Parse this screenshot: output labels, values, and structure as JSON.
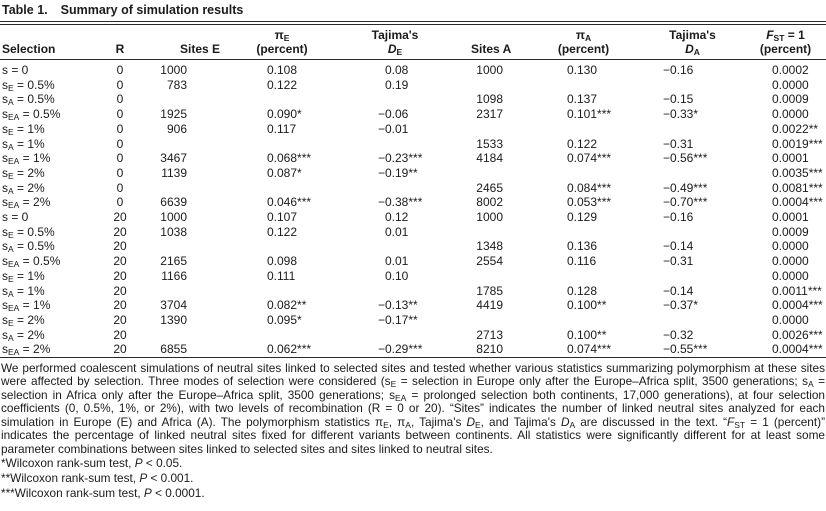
{
  "title": {
    "label": "Table 1.",
    "text": "Summary of simulation results"
  },
  "table": {
    "columns": [
      {
        "key": "selection",
        "label": "Selection"
      },
      {
        "key": "r",
        "label": "R"
      },
      {
        "key": "sites_e",
        "label": "Sites E"
      },
      {
        "key": "pi_e",
        "label": "π~E~\n(percent)"
      },
      {
        "key": "tajima_d_e",
        "label": "Tajima's\n{D}~E~"
      },
      {
        "key": "sites_a",
        "label": "Sites A"
      },
      {
        "key": "pi_a",
        "label": "π~A~\n(percent)"
      },
      {
        "key": "tajima_d_a",
        "label": "Tajima's\n{D}~A~"
      },
      {
        "key": "fst",
        "label": "{F}~ST~ = 1\n(percent)"
      }
    ],
    "rows": [
      [
        "s = 0",
        "0",
        "1000",
        "0.108",
        "0.08",
        "1000",
        "0.130",
        "−0.16",
        "0.0002"
      ],
      [
        "s~E~ = 0.5%",
        "0",
        "783",
        "0.122",
        "0.19",
        "",
        "",
        "",
        "0.0000"
      ],
      [
        "s~A~ = 0.5%",
        "0",
        "",
        "",
        "",
        "1098",
        "0.137",
        "−0.15",
        "0.0009"
      ],
      [
        "s~EA~ = 0.5%",
        "0",
        "1925",
        "0.090*",
        "−0.06",
        "2317",
        "0.101***",
        "−0.33*",
        "0.0000"
      ],
      [
        "s~E~ = 1%",
        "0",
        "906",
        "0.117",
        "−0.01",
        "",
        "",
        "",
        "0.0022**"
      ],
      [
        "s~A~ = 1%",
        "0",
        "",
        "",
        "",
        "1533",
        "0.122",
        "−0.31",
        "0.0019***"
      ],
      [
        "s~EA~ = 1%",
        "0",
        "3467",
        "0.068***",
        "−0.23***",
        "4184",
        "0.074***",
        "−0.56***",
        "0.0001"
      ],
      [
        "s~E~ = 2%",
        "0",
        "1139",
        "0.087*",
        "−0.19**",
        "",
        "",
        "",
        "0.0035***"
      ],
      [
        "s~A~ = 2%",
        "0",
        "",
        "",
        "",
        "2465",
        "0.084***",
        "−0.49***",
        "0.0081***"
      ],
      [
        "s~EA~ = 2%",
        "0",
        "6639",
        "0.046***",
        "−0.38***",
        "8002",
        "0.053***",
        "−0.70***",
        "0.0004***"
      ],
      [
        "s = 0",
        "20",
        "1000",
        "0.107",
        "0.12",
        "1000",
        "0.129",
        "−0.16",
        "0.0001"
      ],
      [
        "s~E~ = 0.5%",
        "20",
        "1038",
        "0.122",
        "0.01",
        "",
        "",
        "",
        "0.0009"
      ],
      [
        "s~A~ = 0.5%",
        "20",
        "",
        "",
        "",
        "1348",
        "0.136",
        "−0.14",
        "0.0000"
      ],
      [
        "s~EA~ = 0.5%",
        "20",
        "2165",
        "0.098",
        "0.01",
        "2554",
        "0.116",
        "−0.31",
        "0.0000"
      ],
      [
        "s~E~ = 1%",
        "20",
        "1166",
        "0.111",
        "0.10",
        "",
        "",
        "",
        "0.0000"
      ],
      [
        "s~A~ = 1%",
        "20",
        "",
        "",
        "",
        "1785",
        "0.128",
        "−0.14",
        "0.0011***"
      ],
      [
        "s~EA~ = 1%",
        "20",
        "3704",
        "0.082**",
        "−0.13**",
        "4419",
        "0.100**",
        "−0.37*",
        "0.0004***"
      ],
      [
        "s~E~ = 2%",
        "20",
        "1390",
        "0.095*",
        "−0.17**",
        "",
        "",
        "",
        "0.0000"
      ],
      [
        "s~A~ = 2%",
        "20",
        "",
        "",
        "",
        "2713",
        "0.100**",
        "−0.32",
        "0.0026***"
      ],
      [
        "s~EA~ = 2%",
        "20",
        "6855",
        "0.062***",
        "−0.29***",
        "8210",
        "0.074***",
        "−0.55***",
        "0.0004***"
      ]
    ]
  },
  "notes": {
    "body": "We performed coalescent simulations of neutral sites linked to selected sites and tested whether various statistics summarizing polymorphism at these sites were affected by selection. Three modes of selection were considered (s~E~ = selection in Europe only after the Europe–Africa split, 3500 generations; s~A~ = selection in Africa only after the Europe–Africa split, 3500 generations; s~EA~ = prolonged selection both continents, 17,000 generations), at four selection coefficients (0, 0.5%, 1%, or 2%), with two levels of recombination (R = 0 or 20). “Sites” indicates the number of linked neutral sites analyzed for each simulation in Europe (E) and Africa (A). The polymorphism statistics π~E~, π~A~, Tajima's {D}~E~, and Tajima's {D}~A~ are discussed in the text. “{F}~ST~ = 1 (percent)” indicates the percentage of linked neutral sites fixed for different variants between continents. All statistics were significantly different for at least some parameter combinations between sites linked to selected sites and sites linked to neutral sites.",
    "footnotes": [
      "*Wilcoxon rank-sum test, {P} < 0.05.",
      "**Wilcoxon rank-sum test, {P} < 0.001.",
      "***Wilcoxon rank-sum test, {P} < 0.0001."
    ]
  }
}
